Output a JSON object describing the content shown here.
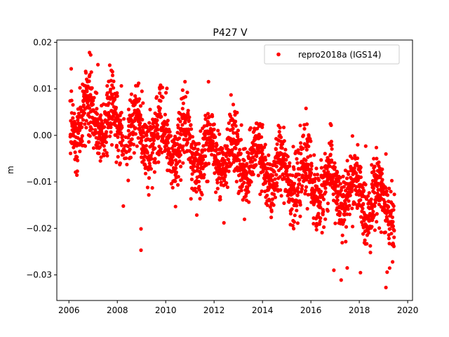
{
  "colors": {
    "series": "#ff0000",
    "axes": "#000000",
    "background": "#ffffff",
    "legend_border": "#cccccc"
  },
  "chart_data": {
    "type": "scatter",
    "title": "P427 V",
    "xlabel": "",
    "ylabel": "m",
    "xlim": [
      2005.5,
      2020.2
    ],
    "ylim": [
      -0.0355,
      0.0205
    ],
    "xticks": [
      2006,
      2008,
      2010,
      2012,
      2014,
      2016,
      2018,
      2020
    ],
    "xtick_labels": [
      "2006",
      "2008",
      "2010",
      "2012",
      "2014",
      "2016",
      "2018",
      "2020"
    ],
    "yticks": [
      0.02,
      0.01,
      0.0,
      -0.01,
      -0.02,
      -0.03
    ],
    "ytick_labels": [
      "0.02",
      "0.01",
      "0.00",
      "−0.01",
      "−0.02",
      "−0.03"
    ],
    "grid": false,
    "legend_position": "upper right",
    "series": [
      {
        "name": "repro2018a (IGS14)",
        "color": "#ff0000",
        "marker": "dot",
        "x_range": [
          2006.05,
          2019.45
        ],
        "trend": {
          "start": 0.005,
          "slope_per_year": -0.0015
        },
        "seasonal_amplitude": 0.004,
        "noise_sd": 0.0035,
        "sample_count": 2400,
        "outliers": [
          {
            "x": 2006.85,
            "y": 0.0178
          },
          {
            "x": 2006.9,
            "y": 0.0173
          },
          {
            "x": 2007.2,
            "y": 0.0152
          },
          {
            "x": 2007.8,
            "y": 0.0137
          },
          {
            "x": 2008.88,
            "y": 0.0112
          },
          {
            "x": 2008.25,
            "y": -0.0152
          },
          {
            "x": 2008.98,
            "y": -0.0201
          },
          {
            "x": 2008.98,
            "y": -0.0247
          },
          {
            "x": 2009.3,
            "y": -0.0128
          },
          {
            "x": 2010.05,
            "y": 0.0101
          },
          {
            "x": 2012.7,
            "y": 0.0087
          },
          {
            "x": 2015.8,
            "y": 0.0058
          },
          {
            "x": 2017.25,
            "y": -0.0311
          },
          {
            "x": 2016.95,
            "y": -0.029
          },
          {
            "x": 2017.5,
            "y": -0.0285
          },
          {
            "x": 2018.05,
            "y": -0.0295
          },
          {
            "x": 2019.1,
            "y": -0.004
          },
          {
            "x": 2019.15,
            "y": -0.0294
          },
          {
            "x": 2019.1,
            "y": -0.0327
          },
          {
            "x": 2018.6,
            "y": -0.007
          }
        ]
      }
    ]
  }
}
